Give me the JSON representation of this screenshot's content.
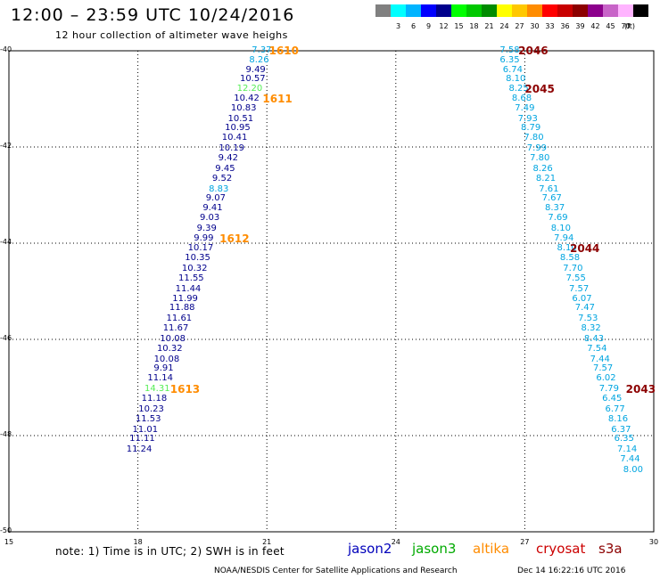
{
  "title": "12:00 – 23:59 UTC 10/24/2016",
  "subtitle": "12 hour collection of altimeter wave heighs",
  "color_scale": {
    "unit": "(ft)",
    "bins": [
      {
        "label": "",
        "color": "#808080"
      },
      {
        "label": "3",
        "color": "#00ffff"
      },
      {
        "label": "6",
        "color": "#00b4ff"
      },
      {
        "label": "9",
        "color": "#0000ff"
      },
      {
        "label": "12",
        "color": "#00008c"
      },
      {
        "label": "15",
        "color": "#00ff00"
      },
      {
        "label": "18",
        "color": "#00c800"
      },
      {
        "label": "21",
        "color": "#008c00"
      },
      {
        "label": "24",
        "color": "#ffff00"
      },
      {
        "label": "27",
        "color": "#ffc800"
      },
      {
        "label": "30",
        "color": "#ff8c00"
      },
      {
        "label": "33",
        "color": "#ff0000"
      },
      {
        "label": "36",
        "color": "#c80000"
      },
      {
        "label": "39",
        "color": "#8c0000"
      },
      {
        "label": "42",
        "color": "#8c008c"
      },
      {
        "label": "45",
        "color": "#c864c8"
      },
      {
        "label": "70",
        "color": "#ffb4ff"
      },
      {
        "label": "",
        "color": "#000000"
      }
    ]
  },
  "map": {
    "lon_range": [
      15,
      30
    ],
    "lat_range": [
      -50,
      -40
    ],
    "x_ticks": [
      "15",
      "18",
      "21",
      "24",
      "27",
      "30"
    ],
    "y_ticks": [
      "-40",
      "-42",
      "-44",
      "-46",
      "-48",
      "-50"
    ]
  },
  "colors": {
    "jason2": "#0000bb",
    "jason3": "#00aa00",
    "altika": "#ff8c00",
    "cryosat": "#cc0000",
    "s3a": "#8c0000",
    "dark_blue": "#00008c",
    "light_blue": "#00a5e0",
    "light_green": "#55ee55"
  },
  "tracks": [
    {
      "satellite": "jason2",
      "observations": [
        {
          "lon": 20.88,
          "lat": -40.0,
          "value": "7.37",
          "color": "light_blue"
        },
        {
          "lon": 20.82,
          "lat": -40.2,
          "value": "8.26",
          "color": "light_blue"
        },
        {
          "lon": 20.74,
          "lat": -40.4,
          "value": "9.49",
          "color": "dark_blue"
        },
        {
          "lon": 20.67,
          "lat": -40.6,
          "value": "10.57",
          "color": "dark_blue"
        },
        {
          "lon": 20.6,
          "lat": -40.8,
          "value": "12.20",
          "color": "light_green"
        },
        {
          "lon": 20.53,
          "lat": -41.0,
          "value": "10.42",
          "color": "dark_blue"
        },
        {
          "lon": 20.46,
          "lat": -41.2,
          "value": "10.83",
          "color": "dark_blue"
        },
        {
          "lon": 20.39,
          "lat": -41.42,
          "value": "10.51",
          "color": "dark_blue"
        },
        {
          "lon": 20.32,
          "lat": -41.62,
          "value": "10.95",
          "color": "dark_blue"
        },
        {
          "lon": 20.25,
          "lat": -41.82,
          "value": "10.41",
          "color": "dark_blue"
        },
        {
          "lon": 20.18,
          "lat": -42.04,
          "value": "10.19",
          "color": "dark_blue"
        },
        {
          "lon": 20.1,
          "lat": -42.24,
          "value": "9.42",
          "color": "dark_blue"
        },
        {
          "lon": 20.03,
          "lat": -42.46,
          "value": "9.45",
          "color": "dark_blue"
        },
        {
          "lon": 19.96,
          "lat": -42.66,
          "value": "9.52",
          "color": "dark_blue"
        },
        {
          "lon": 19.88,
          "lat": -42.88,
          "value": "8.83",
          "color": "light_blue"
        },
        {
          "lon": 19.81,
          "lat": -43.08,
          "value": "9.07",
          "color": "dark_blue"
        },
        {
          "lon": 19.74,
          "lat": -43.28,
          "value": "9.41",
          "color": "dark_blue"
        },
        {
          "lon": 19.67,
          "lat": -43.48,
          "value": "9.03",
          "color": "dark_blue"
        },
        {
          "lon": 19.6,
          "lat": -43.7,
          "value": "9.39",
          "color": "dark_blue"
        },
        {
          "lon": 19.53,
          "lat": -43.9,
          "value": "9.99",
          "color": "dark_blue"
        },
        {
          "lon": 19.46,
          "lat": -44.12,
          "value": "10.17",
          "color": "dark_blue"
        },
        {
          "lon": 19.39,
          "lat": -44.32,
          "value": "10.35",
          "color": "dark_blue"
        },
        {
          "lon": 19.32,
          "lat": -44.54,
          "value": "10.32",
          "color": "dark_blue"
        },
        {
          "lon": 19.24,
          "lat": -44.74,
          "value": "11.55",
          "color": "dark_blue"
        },
        {
          "lon": 19.17,
          "lat": -44.96,
          "value": "11.44",
          "color": "dark_blue"
        },
        {
          "lon": 19.1,
          "lat": -45.16,
          "value": "11.99",
          "color": "dark_blue"
        },
        {
          "lon": 19.03,
          "lat": -45.36,
          "value": "11.88",
          "color": "dark_blue"
        },
        {
          "lon": 18.96,
          "lat": -45.58,
          "value": "11.61",
          "color": "dark_blue"
        },
        {
          "lon": 18.88,
          "lat": -45.78,
          "value": "11.67",
          "color": "dark_blue"
        },
        {
          "lon": 18.81,
          "lat": -46.0,
          "value": "10.08",
          "color": "dark_blue"
        },
        {
          "lon": 18.74,
          "lat": -46.2,
          "value": "10.32",
          "color": "dark_blue"
        },
        {
          "lon": 18.67,
          "lat": -46.42,
          "value": "10.08",
          "color": "dark_blue"
        },
        {
          "lon": 18.6,
          "lat": -46.62,
          "value": "9.91",
          "color": "dark_blue"
        },
        {
          "lon": 18.52,
          "lat": -46.82,
          "value": "11.14",
          "color": "dark_blue"
        },
        {
          "lon": 18.45,
          "lat": -47.04,
          "value": "14.31",
          "color": "light_green"
        },
        {
          "lon": 18.38,
          "lat": -47.24,
          "value": "11.18",
          "color": "dark_blue"
        },
        {
          "lon": 18.31,
          "lat": -47.46,
          "value": "10.23",
          "color": "dark_blue"
        },
        {
          "lon": 18.24,
          "lat": -47.66,
          "value": "11.53",
          "color": "dark_blue"
        },
        {
          "lon": 18.17,
          "lat": -47.88,
          "value": "11.01",
          "color": "dark_blue"
        },
        {
          "lon": 18.1,
          "lat": -48.08,
          "value": "11.11",
          "color": "dark_blue"
        },
        {
          "lon": 18.03,
          "lat": -48.3,
          "value": "11.24",
          "color": "dark_blue"
        }
      ],
      "times": [
        {
          "lon": 21.05,
          "lat": -40.0,
          "label": "1610",
          "color": "altika"
        },
        {
          "lon": 20.9,
          "lat": -41.0,
          "label": "1611",
          "color": "altika"
        },
        {
          "lon": 19.9,
          "lat": -43.9,
          "label": "1612",
          "color": "altika"
        },
        {
          "lon": 18.75,
          "lat": -47.04,
          "label": "1613",
          "color": "altika"
        }
      ]
    },
    {
      "satellite": "jason2",
      "observations": [
        {
          "lon": 26.65,
          "lat": -40.0,
          "value": "7.58",
          "color": "light_blue"
        },
        {
          "lon": 26.65,
          "lat": -40.2,
          "value": "6.35",
          "color": "light_blue"
        },
        {
          "lon": 26.72,
          "lat": -40.4,
          "value": "6.74",
          "color": "light_blue"
        },
        {
          "lon": 26.79,
          "lat": -40.6,
          "value": "8.10",
          "color": "light_blue"
        },
        {
          "lon": 26.86,
          "lat": -40.8,
          "value": "8.25",
          "color": "light_blue"
        },
        {
          "lon": 26.93,
          "lat": -41.0,
          "value": "8.68",
          "color": "light_blue"
        },
        {
          "lon": 27.0,
          "lat": -41.2,
          "value": "7.49",
          "color": "light_blue"
        },
        {
          "lon": 27.07,
          "lat": -41.42,
          "value": "7.93",
          "color": "light_blue"
        },
        {
          "lon": 27.14,
          "lat": -41.62,
          "value": "8.79",
          "color": "light_blue"
        },
        {
          "lon": 27.21,
          "lat": -41.82,
          "value": "7.80",
          "color": "light_blue"
        },
        {
          "lon": 27.28,
          "lat": -42.04,
          "value": "7.99",
          "color": "light_blue"
        },
        {
          "lon": 27.35,
          "lat": -42.24,
          "value": "7.80",
          "color": "light_blue"
        },
        {
          "lon": 27.42,
          "lat": -42.46,
          "value": "8.26",
          "color": "light_blue"
        },
        {
          "lon": 27.49,
          "lat": -42.66,
          "value": "8.21",
          "color": "light_blue"
        },
        {
          "lon": 27.56,
          "lat": -42.88,
          "value": "7.61",
          "color": "light_blue"
        },
        {
          "lon": 27.63,
          "lat": -43.08,
          "value": "7.67",
          "color": "light_blue"
        },
        {
          "lon": 27.7,
          "lat": -43.28,
          "value": "8.37",
          "color": "light_blue"
        },
        {
          "lon": 27.77,
          "lat": -43.48,
          "value": "7.69",
          "color": "light_blue"
        },
        {
          "lon": 27.84,
          "lat": -43.7,
          "value": "8.10",
          "color": "light_blue"
        },
        {
          "lon": 27.91,
          "lat": -43.9,
          "value": "7.94",
          "color": "light_blue"
        },
        {
          "lon": 27.98,
          "lat": -44.12,
          "value": "8.10",
          "color": "light_blue"
        },
        {
          "lon": 28.05,
          "lat": -44.32,
          "value": "8.58",
          "color": "light_blue"
        },
        {
          "lon": 28.12,
          "lat": -44.54,
          "value": "7.70",
          "color": "light_blue"
        },
        {
          "lon": 28.19,
          "lat": -44.74,
          "value": "7.55",
          "color": "light_blue"
        },
        {
          "lon": 28.26,
          "lat": -44.96,
          "value": "7.57",
          "color": "light_blue"
        },
        {
          "lon": 28.33,
          "lat": -45.16,
          "value": "6.07",
          "color": "light_blue"
        },
        {
          "lon": 28.4,
          "lat": -45.36,
          "value": "7.47",
          "color": "light_blue"
        },
        {
          "lon": 28.47,
          "lat": -45.58,
          "value": "7.53",
          "color": "light_blue"
        },
        {
          "lon": 28.54,
          "lat": -45.78,
          "value": "8.32",
          "color": "light_blue"
        },
        {
          "lon": 28.61,
          "lat": -46.0,
          "value": "8.43",
          "color": "light_blue"
        },
        {
          "lon": 28.68,
          "lat": -46.2,
          "value": "7.54",
          "color": "light_blue"
        },
        {
          "lon": 28.75,
          "lat": -46.42,
          "value": "7.44",
          "color": "light_blue"
        },
        {
          "lon": 28.82,
          "lat": -46.62,
          "value": "7.57",
          "color": "light_blue"
        },
        {
          "lon": 28.89,
          "lat": -46.82,
          "value": "6.02",
          "color": "light_blue"
        },
        {
          "lon": 28.96,
          "lat": -47.04,
          "value": "7.79",
          "color": "light_blue"
        },
        {
          "lon": 29.03,
          "lat": -47.24,
          "value": "6.45",
          "color": "light_blue"
        },
        {
          "lon": 29.1,
          "lat": -47.46,
          "value": "6.77",
          "color": "light_blue"
        },
        {
          "lon": 29.17,
          "lat": -47.66,
          "value": "8.16",
          "color": "light_blue"
        },
        {
          "lon": 29.24,
          "lat": -47.88,
          "value": "6.37",
          "color": "light_blue"
        },
        {
          "lon": 29.31,
          "lat": -48.08,
          "value": "6.35",
          "color": "light_blue"
        },
        {
          "lon": 29.38,
          "lat": -48.3,
          "value": "7.14",
          "color": "light_blue"
        },
        {
          "lon": 29.45,
          "lat": -48.5,
          "value": "7.44",
          "color": "light_blue"
        },
        {
          "lon": 29.52,
          "lat": -48.72,
          "value": "8.00",
          "color": "light_blue"
        }
      ],
      "times": [
        {
          "lon": 26.85,
          "lat": -40.0,
          "label": "2046",
          "color": "s3a"
        },
        {
          "lon": 27.0,
          "lat": -40.8,
          "label": "2045",
          "color": "s3a"
        },
        {
          "lon": 28.05,
          "lat": -44.12,
          "label": "2044",
          "color": "s3a"
        },
        {
          "lon": 29.35,
          "lat": -47.04,
          "label": "2043",
          "color": "s3a"
        }
      ]
    }
  ],
  "note": "note: 1) Time is in UTC; 2) SWH is in feet",
  "legend": [
    {
      "label": "jason2",
      "color": "#0000bb"
    },
    {
      "label": "jason3",
      "color": "#00aa00"
    },
    {
      "label": "altika",
      "color": "#ff8c00"
    },
    {
      "label": "cryosat",
      "color": "#cc0000"
    },
    {
      "label": "s3a",
      "color": "#8c0000"
    }
  ],
  "footer": "NOAA/NESDIS Center for Satellite Applications and Research",
  "footer_date": "Dec 14 16:22:16 UTC 2016"
}
